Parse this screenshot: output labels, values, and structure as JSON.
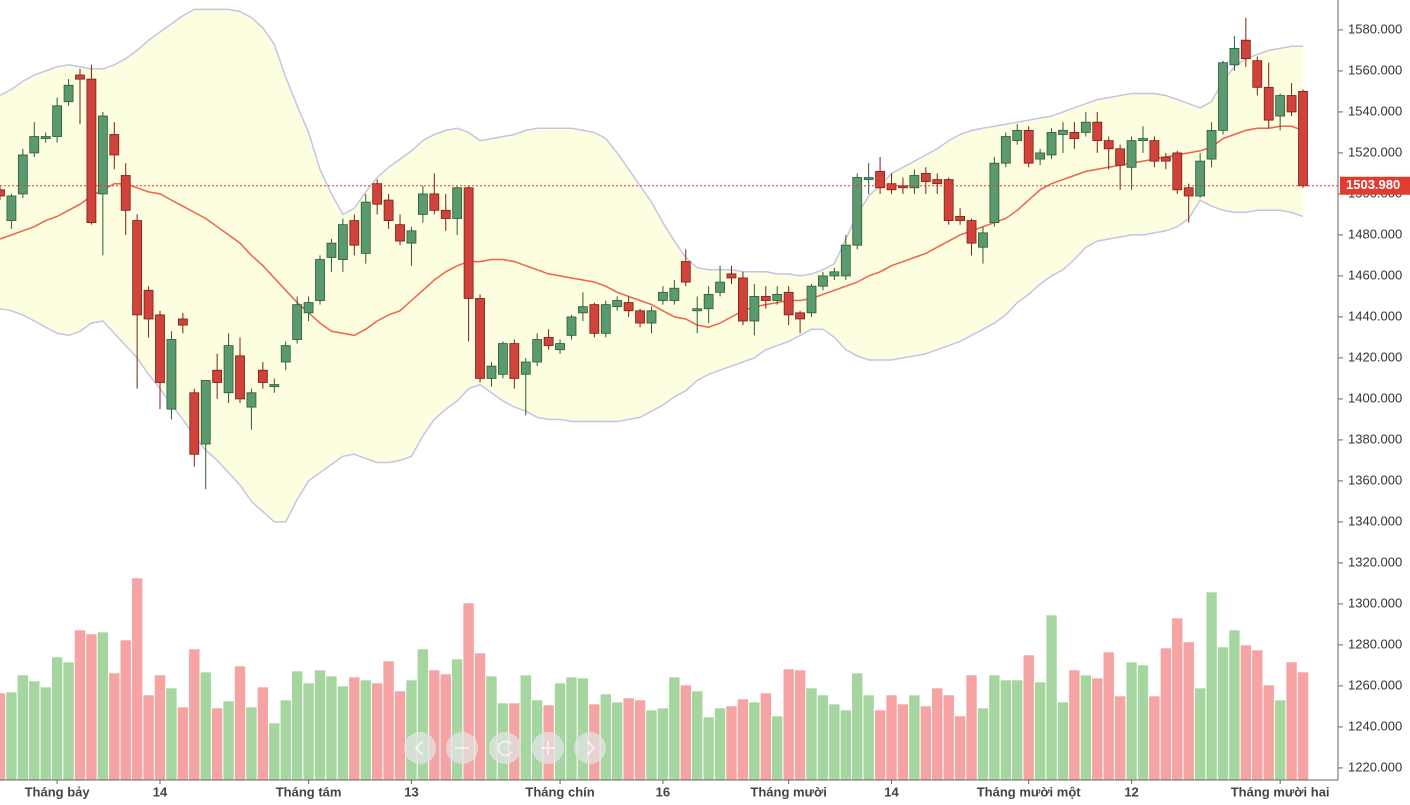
{
  "chart_data": {
    "type": "candlestick",
    "categories": [
      null,
      null,
      null,
      null,
      null,
      "Tháng bảy",
      null,
      null,
      null,
      null,
      null,
      null,
      null,
      null,
      "14",
      null,
      null,
      null,
      null,
      null,
      null,
      null,
      null,
      null,
      null,
      null,
      null,
      "Tháng tám",
      null,
      null,
      null,
      null,
      null,
      null,
      null,
      null,
      "13",
      null,
      null,
      null,
      null,
      null,
      null,
      null,
      null,
      null,
      null,
      null,
      null,
      "Tháng chín",
      null,
      null,
      null,
      null,
      null,
      null,
      null,
      null,
      "16",
      null,
      null,
      null,
      null,
      null,
      null,
      null,
      null,
      null,
      null,
      "Tháng mười",
      null,
      null,
      null,
      null,
      null,
      null,
      null,
      null,
      "14",
      null,
      null,
      null,
      null,
      null,
      null,
      null,
      null,
      null,
      null,
      null,
      "Tháng mười một",
      null,
      null,
      null,
      null,
      null,
      null,
      null,
      null,
      "12",
      null,
      null,
      null,
      null,
      null,
      null,
      null,
      null,
      null,
      null,
      null,
      null,
      "Tháng mười hai",
      null,
      null
    ],
    "open": [
      1502,
      1487,
      1500,
      1520,
      1527,
      1528,
      1545,
      1558,
      1556,
      1500,
      1529,
      1509,
      1487,
      1453,
      1441,
      1395,
      1439,
      1403,
      1378,
      1414,
      1403,
      1421,
      1396,
      1414,
      1406,
      1418,
      1429,
      1442,
      1448,
      1469,
      1468,
      1487,
      1471,
      1505,
      1497,
      1485,
      1476,
      1490,
      1500,
      1492,
      1488,
      1503,
      1449,
      1410,
      1412,
      1427,
      1412,
      1418,
      1430,
      1424,
      1431,
      1442,
      1446,
      1432,
      1445,
      1447,
      1443,
      1437,
      1448,
      1448,
      1467,
      1443,
      1444,
      1452,
      1461,
      1459,
      1438,
      1450,
      1448,
      1452,
      1442,
      1442,
      1455,
      1460,
      1460,
      1475,
      1507,
      1511,
      1505,
      1504,
      1503,
      1510,
      1507,
      1507,
      1489,
      1487,
      1474,
      1486,
      1515,
      1526,
      1531,
      1517,
      1519,
      1529,
      1530,
      1530,
      1535,
      1526,
      1522,
      1513,
      1526,
      1526,
      1518,
      1520,
      1503,
      1499,
      1517,
      1531,
      1563,
      1575,
      1565,
      1552,
      1538,
      1548,
      1550
    ],
    "high": [
      1504,
      1500,
      1522,
      1535,
      1530,
      1547,
      1556,
      1561,
      1563,
      1540,
      1535,
      1515,
      1490,
      1455,
      1443,
      1433,
      1442,
      1405,
      1409,
      1422,
      1432,
      1430,
      1405,
      1418,
      1410,
      1428,
      1450,
      1450,
      1470,
      1478,
      1488,
      1490,
      1500,
      1507,
      1500,
      1490,
      1484,
      1504,
      1510,
      1500,
      1504,
      1504,
      1451,
      1418,
      1428,
      1429,
      1420,
      1432,
      1434,
      1429,
      1441,
      1452,
      1447,
      1448,
      1450,
      1450,
      1444,
      1445,
      1455,
      1458,
      1473,
      1450,
      1455,
      1465,
      1465,
      1462,
      1456,
      1455,
      1455,
      1455,
      1443,
      1456,
      1462,
      1464,
      1480,
      1510,
      1515,
      1518,
      1510,
      1508,
      1512,
      1513,
      1510,
      1508,
      1493,
      1488,
      1484,
      1518,
      1530,
      1534,
      1533,
      1522,
      1532,
      1535,
      1535,
      1540,
      1540,
      1528,
      1524,
      1528,
      1533,
      1528,
      1520,
      1521,
      1505,
      1520,
      1535,
      1565,
      1577,
      1586,
      1567,
      1564,
      1549,
      1554,
      1551
    ],
    "low": [
      1497,
      1483,
      1498,
      1518,
      1525,
      1525,
      1543,
      1534,
      1485,
      1470,
      1512,
      1480,
      1405,
      1430,
      1395,
      1390,
      1432,
      1367,
      1356,
      1400,
      1398,
      1398,
      1385,
      1405,
      1403,
      1414,
      1427,
      1438,
      1446,
      1462,
      1462,
      1470,
      1466,
      1490,
      1483,
      1475,
      1465,
      1486,
      1490,
      1482,
      1480,
      1428,
      1408,
      1406,
      1410,
      1405,
      1392,
      1416,
      1424,
      1422,
      1429,
      1438,
      1430,
      1430,
      1443,
      1440,
      1435,
      1432,
      1446,
      1446,
      1455,
      1432,
      1437,
      1450,
      1456,
      1436,
      1431,
      1444,
      1446,
      1436,
      1432,
      1440,
      1453,
      1458,
      1458,
      1473,
      1500,
      1500,
      1500,
      1500,
      1500,
      1500,
      1500,
      1485,
      1485,
      1470,
      1466,
      1484,
      1513,
      1524,
      1513,
      1514,
      1517,
      1520,
      1522,
      1528,
      1520,
      1512,
      1502,
      1502,
      1520,
      1513,
      1512,
      1500,
      1486,
      1498,
      1513,
      1529,
      1560,
      1562,
      1548,
      1532,
      1531,
      1538,
      1503
    ],
    "close": [
      1499,
      1499,
      1519,
      1528,
      1528,
      1543,
      1553,
      1556,
      1486,
      1538,
      1519,
      1492,
      1441,
      1439,
      1408,
      1429,
      1436,
      1373,
      1409,
      1408,
      1426,
      1400,
      1403,
      1408,
      1407,
      1426,
      1446,
      1447,
      1468,
      1476,
      1485,
      1475,
      1496,
      1495,
      1487,
      1477,
      1482,
      1500,
      1492,
      1488,
      1503,
      1449,
      1410,
      1416,
      1427,
      1410,
      1418,
      1429,
      1426,
      1427,
      1440,
      1445,
      1432,
      1446,
      1448,
      1443,
      1437,
      1443,
      1452,
      1454,
      1457,
      1444,
      1451,
      1457,
      1459,
      1438,
      1450,
      1448,
      1451,
      1441,
      1439,
      1455,
      1460,
      1462,
      1475,
      1508,
      1508,
      1503,
      1502,
      1503,
      1509,
      1506,
      1505,
      1487,
      1487,
      1476,
      1481,
      1515,
      1528,
      1531,
      1515,
      1520,
      1530,
      1531,
      1527,
      1535,
      1526,
      1522,
      1514,
      1526,
      1527,
      1516,
      1516,
      1502,
      1499,
      1516,
      1531,
      1564,
      1571,
      1566,
      1552,
      1536,
      1548,
      1540,
      1503.98
    ],
    "volume": [
      87,
      88,
      105,
      99,
      93,
      123,
      118,
      150,
      146,
      148,
      107,
      140,
      202,
      85,
      105,
      92,
      73,
      131,
      108,
      72,
      79,
      114,
      73,
      93,
      57,
      80,
      109,
      97,
      110,
      104,
      94,
      103,
      100,
      97,
      119,
      89,
      100,
      131,
      110,
      106,
      121,
      177,
      127,
      104,
      77,
      77,
      105,
      80,
      75,
      97,
      103,
      102,
      76,
      86,
      78,
      82,
      80,
      70,
      72,
      103,
      95,
      89,
      63,
      72,
      74,
      81,
      78,
      87,
      64,
      111,
      110,
      92,
      85,
      76,
      70,
      107,
      85,
      70,
      85,
      76,
      85,
      74,
      92,
      85,
      64,
      105,
      72,
      105,
      100,
      100,
      125,
      98,
      165,
      78,
      110,
      105,
      102,
      128,
      84,
      118,
      115,
      84,
      132,
      162,
      138,
      92,
      188,
      133,
      150,
      135,
      130,
      95,
      80,
      118,
      108
    ],
    "bands": {
      "upper": [
        1548,
        1551,
        1555,
        1558,
        1560,
        1562,
        1563,
        1562,
        1561,
        1561,
        1563,
        1566,
        1570,
        1575,
        1579,
        1583,
        1587,
        1590,
        1590,
        1590,
        1590,
        1589,
        1586,
        1581,
        1573,
        1557,
        1543,
        1530,
        1512,
        1500,
        1490,
        1493,
        1501,
        1508,
        1513,
        1517,
        1521,
        1526,
        1529,
        1531,
        1532,
        1530,
        1526,
        1527,
        1528,
        1529,
        1531,
        1532,
        1532,
        1532,
        1532,
        1531,
        1530,
        1527,
        1520,
        1512,
        1504,
        1496,
        1486,
        1477,
        1469,
        1464,
        1463,
        1463,
        1463,
        1462,
        1462,
        1462,
        1461,
        1461,
        1460,
        1461,
        1463,
        1466,
        1478,
        1490,
        1499,
        1504,
        1510,
        1513,
        1516,
        1519,
        1522,
        1526,
        1529,
        1531,
        1532,
        1533,
        1534,
        1535,
        1536,
        1537,
        1538,
        1540,
        1542,
        1544,
        1546,
        1547,
        1548,
        1549,
        1549,
        1549,
        1548,
        1546,
        1544,
        1542,
        1545,
        1555,
        1562,
        1566,
        1568,
        1570,
        1571,
        1572,
        1572
      ],
      "middle": [
        1478,
        1480,
        1482,
        1484,
        1487,
        1489,
        1492,
        1495,
        1499,
        1502,
        1505,
        1505,
        1503,
        1501,
        1500,
        1497,
        1494,
        1491,
        1488,
        1484,
        1480,
        1476,
        1470,
        1465,
        1459,
        1453,
        1447,
        1442,
        1437,
        1433,
        1432,
        1431,
        1434,
        1438,
        1441,
        1443,
        1448,
        1453,
        1458,
        1462,
        1465,
        1467,
        1467,
        1468,
        1468,
        1467,
        1465,
        1463,
        1461,
        1460,
        1459,
        1458,
        1457,
        1455,
        1452,
        1450,
        1448,
        1446,
        1443,
        1440,
        1439,
        1436,
        1435,
        1437,
        1440,
        1443,
        1445,
        1446,
        1447,
        1448,
        1448,
        1449,
        1451,
        1453,
        1455,
        1457,
        1460,
        1462,
        1465,
        1467,
        1469,
        1471,
        1474,
        1477,
        1480,
        1482,
        1484,
        1486,
        1488,
        1492,
        1497,
        1502,
        1505,
        1507,
        1509,
        1511,
        1512,
        1513,
        1514,
        1515,
        1516,
        1517,
        1518,
        1519,
        1520,
        1521,
        1523,
        1527,
        1529,
        1531,
        1532,
        1532,
        1533,
        1533,
        1531
      ],
      "lower": [
        1444,
        1443,
        1441,
        1438,
        1435,
        1432,
        1431,
        1433,
        1437,
        1438,
        1432,
        1426,
        1420,
        1412,
        1405,
        1397,
        1390,
        1382,
        1375,
        1370,
        1364,
        1358,
        1350,
        1345,
        1340,
        1340,
        1351,
        1360,
        1364,
        1368,
        1372,
        1373,
        1371,
        1369,
        1369,
        1370,
        1372,
        1382,
        1390,
        1395,
        1399,
        1405,
        1407,
        1403,
        1399,
        1396,
        1394,
        1391,
        1390,
        1390,
        1389,
        1389,
        1389,
        1389,
        1389,
        1390,
        1391,
        1394,
        1397,
        1401,
        1404,
        1409,
        1412,
        1414,
        1416,
        1418,
        1420,
        1424,
        1426,
        1428,
        1431,
        1434,
        1434,
        1430,
        1424,
        1421,
        1419,
        1419,
        1419,
        1420,
        1421,
        1422,
        1424,
        1426,
        1428,
        1431,
        1434,
        1437,
        1441,
        1447,
        1451,
        1456,
        1460,
        1463,
        1468,
        1474,
        1477,
        1478,
        1479,
        1480,
        1480,
        1481,
        1482,
        1484,
        1488,
        1497,
        1494,
        1492,
        1491,
        1491,
        1492,
        1492,
        1492,
        1491,
        1489
      ]
    },
    "ylim": [
      1214.1,
      1594.6
    ],
    "yticks": [
      {
        "value": 1220,
        "label": "1220.000"
      },
      {
        "value": 1240,
        "label": "1240.000"
      },
      {
        "value": 1260,
        "label": "1260.000"
      },
      {
        "value": 1280,
        "label": "1280.000"
      },
      {
        "value": 1300,
        "label": "1300.000"
      },
      {
        "value": 1320,
        "label": "1320.000"
      },
      {
        "value": 1340,
        "label": "1340.000"
      },
      {
        "value": 1360,
        "label": "1360.000"
      },
      {
        "value": 1380,
        "label": "1380.000"
      },
      {
        "value": 1400,
        "label": "1400.000"
      },
      {
        "value": 1420,
        "label": "1420.000"
      },
      {
        "value": 1440,
        "label": "1440.000"
      },
      {
        "value": 1460,
        "label": "1460.000"
      },
      {
        "value": 1480,
        "label": "1480.000"
      },
      {
        "value": 1500,
        "label": "1500.000"
      },
      {
        "value": 1520,
        "label": "1520.000"
      },
      {
        "value": 1540,
        "label": "1540.000"
      },
      {
        "value": 1560,
        "label": "1560.000"
      },
      {
        "value": 1580,
        "label": "1580.000"
      }
    ],
    "volume_ylim": [
      0,
      780
    ],
    "last_price": {
      "value": 1503.98,
      "label": "1503.980"
    },
    "up_color": "#5b9a6e",
    "down_color": "#d0433a",
    "volume_up_color": "#a5d6a0",
    "volume_down_color": "#f5a3a3",
    "band_fill": "#fdfde0",
    "band_line_color": "#c4c4e6",
    "middle_color": "#f4604a",
    "last_price_color": "#e03c31"
  }
}
